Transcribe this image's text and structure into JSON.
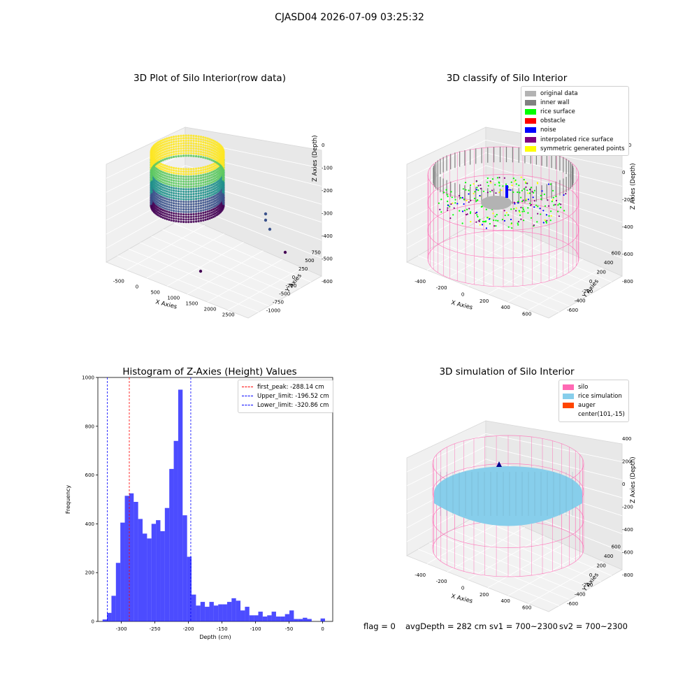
{
  "figure": {
    "suptitle": "CJASD04 2026-07-09 03:25:32",
    "footer": {
      "flag": "flag = 0",
      "avg_depth": "avgDepth = 282 cm",
      "sv1": "sv1 = 700~2300",
      "sv2": "sv2 = 700~2300"
    }
  },
  "panel_raw": {
    "title": "3D Plot of Silo Interior(row data)",
    "x_label": "X Axies",
    "y_label": "Y Axies",
    "z_label": "Z Axies (Depth)",
    "x_ticks": [
      "-500",
      "0",
      "500",
      "1000",
      "1500",
      "2000",
      "2500"
    ],
    "y_ticks": [
      "-1000",
      "-750",
      "-500",
      "-250",
      "0",
      "250",
      "500",
      "750"
    ],
    "z_ticks": [
      "0",
      "-100",
      "-200",
      "-300",
      "-400",
      "-500",
      "-600"
    ],
    "colormap": [
      "#440154",
      "#3b528b",
      "#21918c",
      "#5ec962",
      "#fde725"
    ]
  },
  "panel_classify": {
    "title": "3D classify of Silo Interior",
    "x_label": "X Axies",
    "y_label": "Y Axies",
    "z_label": "Z Axies (Depth)",
    "x_ticks": [
      "-400",
      "-200",
      "0",
      "200",
      "400",
      "600"
    ],
    "y_ticks": [
      "-600",
      "-400",
      "-200",
      "0",
      "200",
      "400",
      "600"
    ],
    "z_ticks": [
      "200",
      "0",
      "-200",
      "-400",
      "-600",
      "-800"
    ],
    "legend": [
      {
        "label": "original data",
        "color": "#b3b3b3"
      },
      {
        "label": "inner wall",
        "color": "#808080"
      },
      {
        "label": "rice surface",
        "color": "#00ff00"
      },
      {
        "label": "obstacle",
        "color": "#ff0000"
      },
      {
        "label": "noise",
        "color": "#0000ff"
      },
      {
        "label": "interpolated rice surface",
        "color": "#800080"
      },
      {
        "label": "symmetric generated points",
        "color": "#ffff00"
      }
    ],
    "cylinder_color": "#ff69b4"
  },
  "panel_sim": {
    "title": "3D simulation of Silo Interior",
    "x_label": "X Axies",
    "y_label": "Y Axies",
    "z_label": "Z Axies (Depth)",
    "x_ticks": [
      "-400",
      "-200",
      "0",
      "200",
      "400",
      "600"
    ],
    "y_ticks": [
      "-600",
      "-400",
      "-200",
      "0",
      "200",
      "400",
      "600"
    ],
    "z_ticks": [
      "400",
      "200",
      "0",
      "-200",
      "-400",
      "-600",
      "-800"
    ],
    "legend": [
      {
        "label": "silo",
        "color": "#ff69b4"
      },
      {
        "label": "rice simulation",
        "color": "#87ceeb"
      },
      {
        "label": "auger",
        "color": "#ff4500"
      },
      {
        "label": "center(101,-15)",
        "color": ""
      }
    ]
  },
  "chart_data": {
    "type": "bar",
    "title": "Histogram of Z-Axies (Height) Values",
    "xlabel": "Depth (cm)",
    "ylabel": "Frequency",
    "xlim": [
      -335,
      15
    ],
    "ylim": [
      0,
      1000
    ],
    "x_ticks": [
      -300,
      -250,
      -200,
      -150,
      -100,
      -50,
      0
    ],
    "y_ticks": [
      0,
      200,
      400,
      600,
      800,
      1000
    ],
    "bar_color": "#0000ff",
    "bin_width": 6.63,
    "bins_left": [
      -328,
      -321.37,
      -314.74,
      -308.11,
      -301.48,
      -294.85,
      -288.22,
      -281.59,
      -274.96,
      -268.33,
      -261.7,
      -255.07,
      -248.44,
      -241.81,
      -235.18,
      -228.55,
      -221.92,
      -215.29,
      -208.66,
      -202.03,
      -195.4,
      -188.77,
      -182.14,
      -175.51,
      -168.88,
      -162.25,
      -155.62,
      -148.99,
      -142.36,
      -135.73,
      -129.1,
      -122.47,
      -115.84,
      -109.21,
      -102.58,
      -95.95,
      -89.32,
      -82.69,
      -76.06,
      -69.43,
      -62.8,
      -56.17,
      -49.54,
      -42.91,
      -36.28,
      -29.65,
      -23.02,
      -16.39,
      -9.76,
      -3.13
    ],
    "values": [
      8,
      35,
      105,
      240,
      405,
      515,
      525,
      490,
      420,
      360,
      340,
      400,
      415,
      370,
      465,
      625,
      740,
      950,
      435,
      265,
      110,
      65,
      80,
      60,
      80,
      65,
      70,
      70,
      80,
      95,
      85,
      45,
      60,
      25,
      25,
      40,
      20,
      25,
      40,
      20,
      20,
      30,
      45,
      10,
      10,
      15,
      10,
      0,
      0,
      12
    ],
    "vlines": [
      {
        "label": "first_peak: -288.14 cm",
        "x": -288.14,
        "color": "#ff0000"
      },
      {
        "label": "Upper_limit: -196.52 cm",
        "x": -196.52,
        "color": "#0000ff"
      },
      {
        "label": "Lower_limit: -320.86 cm",
        "x": -320.86,
        "color": "#0000ff"
      }
    ]
  }
}
